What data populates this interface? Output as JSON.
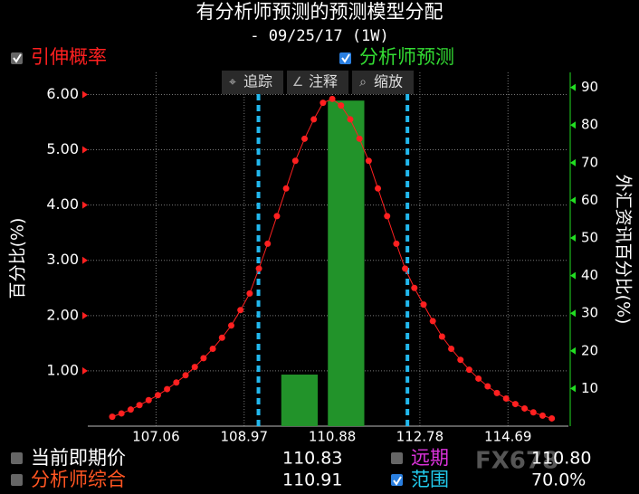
{
  "chart_data": {
    "type": "line",
    "title": "有分析师预测的预测模型分配",
    "subtitle": "-  09/25/17 (1W)",
    "ylabel": "百分比(%)",
    "y2label": "外汇资讯百分比(%)",
    "x": [
      106.11,
      106.31,
      106.51,
      106.7,
      106.9,
      107.1,
      107.3,
      107.5,
      107.7,
      107.9,
      108.09,
      108.29,
      108.49,
      108.69,
      108.89,
      109.09,
      109.29,
      109.48,
      109.68,
      109.88,
      110.08,
      110.28,
      110.48,
      110.68,
      110.88,
      111.07,
      111.27,
      111.47,
      111.67,
      111.87,
      112.07,
      112.27,
      112.46,
      112.66,
      112.86,
      113.06,
      113.26,
      113.46,
      113.66,
      113.85,
      114.05,
      114.25,
      114.45,
      114.65,
      114.85,
      115.05,
      115.24,
      115.44,
      115.64
    ],
    "series": [
      {
        "name": "引伸概率",
        "color": "#ff2020",
        "legend_box": "#666666",
        "values": [
          0.17,
          0.23,
          0.3,
          0.38,
          0.47,
          0.56,
          0.67,
          0.79,
          0.92,
          1.07,
          1.23,
          1.4,
          1.6,
          1.82,
          2.1,
          2.4,
          2.85,
          3.3,
          3.8,
          4.3,
          4.8,
          5.2,
          5.55,
          5.85,
          5.92,
          5.8,
          5.55,
          5.2,
          4.8,
          4.3,
          3.8,
          3.3,
          2.85,
          2.5,
          2.2,
          1.9,
          1.62,
          1.4,
          1.2,
          1.02,
          0.86,
          0.72,
          0.6,
          0.5,
          0.4,
          0.32,
          0.25,
          0.19,
          0.14
        ]
      },
      {
        "name": "分析师预测",
        "color": "#22932a",
        "legend_color": "#33dd33",
        "legend_box": "#2a7fe0",
        "axis": "y2",
        "type": "bar",
        "x": [
          110.17,
          111.18
        ],
        "bar_width": 0.79,
        "values": [
          13.7,
          86.5
        ]
      }
    ],
    "vlines": [
      109.28,
      112.51
    ],
    "vline_color": "#22b8ee",
    "xlim": [
      105.58,
      116.0
    ],
    "xticks": [
      107.06,
      108.97,
      110.88,
      112.78,
      114.69
    ],
    "ylim": [
      0,
      6.4
    ],
    "yticks": [
      {
        "value": 1,
        "label": "1.00"
      },
      {
        "value": 2,
        "label": "2.00"
      },
      {
        "value": 3,
        "label": "3.00"
      },
      {
        "value": 4,
        "label": "4.00"
      },
      {
        "value": 5,
        "label": "5.00"
      },
      {
        "value": 6,
        "label": "6.00"
      }
    ],
    "y2lim": [
      0,
      94
    ],
    "y2ticks": [
      10,
      20,
      30,
      40,
      50,
      60,
      70,
      80,
      90
    ],
    "grid": true
  },
  "toolbar": [
    "追踪",
    "注释",
    "缩放"
  ],
  "panel": [
    {
      "label": "当前即期价",
      "value": "110.83",
      "color": "#ffffff",
      "box": "#666666"
    },
    {
      "label": "分析师综合",
      "value": "110.91",
      "color": "#ff5522",
      "box": "#666666"
    },
    {
      "label": "远期",
      "value": "110.80",
      "color": "#dd33dd",
      "box": "#666666"
    },
    {
      "label": "范围",
      "value": "70.0%",
      "color": "#22ccee",
      "box": "#2a7fe0"
    }
  ],
  "watermark": "FX678"
}
